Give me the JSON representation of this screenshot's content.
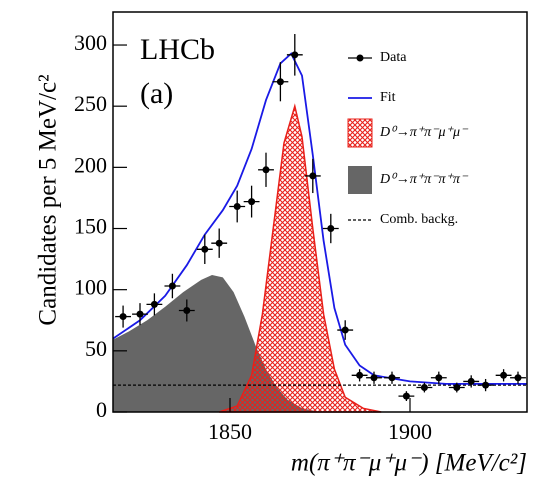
{
  "chart_data": {
    "type": "physics-fit",
    "experiment_label": "LHCb",
    "panel_label": "(a)",
    "x_label": "m(π⁺π⁻μ⁺μ⁻) [MeV/c²]",
    "y_label": "Candidates per 5 MeV/c²",
    "xlim": [
      1817.5,
      1932.5
    ],
    "xticks": [
      1850,
      1900
    ],
    "ylim": [
      0,
      327
    ],
    "yticks": [
      0,
      50,
      100,
      150,
      200,
      250,
      300
    ],
    "series": [
      {
        "name": "D⁰→π⁺π⁻π⁺π⁻",
        "style": "filled",
        "color": "#666666",
        "x": [
          1817.5,
          1822,
          1827,
          1832,
          1837,
          1842,
          1845,
          1848,
          1851,
          1854,
          1857,
          1860,
          1863,
          1866,
          1870,
          1875
        ],
        "values": [
          59,
          66,
          75,
          86,
          98,
          108,
          112,
          110,
          98,
          78,
          55,
          35,
          20,
          10,
          3,
          0
        ]
      },
      {
        "name": "D⁰→π⁺π⁻μ⁺μ⁻",
        "style": "hatched",
        "color": "#e8201a",
        "x": [
          1847,
          1852,
          1856,
          1859,
          1862,
          1865,
          1868,
          1870,
          1873,
          1876,
          1879,
          1882,
          1887,
          1892
        ],
        "values": [
          0,
          5,
          30,
          80,
          150,
          220,
          250,
          225,
          150,
          80,
          35,
          12,
          3,
          0
        ]
      },
      {
        "name": "Comb. backg.",
        "style": "dashed",
        "color": "#000000",
        "x": [
          1817.5,
          1932.5
        ],
        "values": [
          22,
          22
        ]
      },
      {
        "name": "Fit",
        "style": "line",
        "color": "#1a1ae6",
        "x": [
          1817.5,
          1825,
          1832,
          1838,
          1843,
          1848,
          1852,
          1856,
          1860,
          1864,
          1867,
          1870,
          1873,
          1876,
          1879,
          1882,
          1886,
          1890,
          1900,
          1910,
          1932.5
        ],
        "values": [
          60,
          75,
          95,
          120,
          145,
          165,
          185,
          215,
          255,
          285,
          293,
          275,
          210,
          140,
          85,
          55,
          38,
          30,
          25,
          23,
          23
        ]
      },
      {
        "name": "Data",
        "style": "points",
        "color": "#000000",
        "xerr": 2.2,
        "x": [
          1820.3,
          1825,
          1829,
          1834,
          1838,
          1843,
          1847,
          1852,
          1856,
          1860,
          1864,
          1868,
          1873,
          1878,
          1882,
          1886,
          1890,
          1895,
          1899,
          1904,
          1908,
          1913,
          1917,
          1921,
          1926,
          1930
        ],
        "values": [
          78,
          80,
          88,
          103,
          83,
          133,
          138,
          168,
          172,
          198,
          270,
          292,
          193,
          150,
          67,
          30,
          28,
          28,
          13,
          20,
          28,
          20,
          25,
          22,
          30,
          28
        ],
        "errors": [
          9,
          9,
          9,
          10,
          9,
          12,
          12,
          13,
          13,
          14,
          16,
          17,
          14,
          12,
          8,
          5,
          5,
          5,
          4,
          4,
          5,
          4,
          5,
          5,
          5,
          5
        ]
      }
    ],
    "legend_order": [
      4,
      3,
      1,
      0,
      2
    ]
  }
}
